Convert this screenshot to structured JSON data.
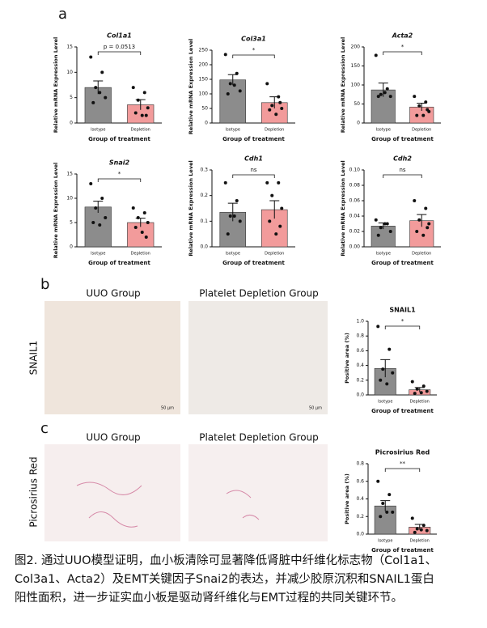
{
  "panels": {
    "a": "a",
    "b": "b",
    "c": "c"
  },
  "images": {
    "b_left": "UUO Group",
    "b_right": "Platelet Depletion Group",
    "b_side": "SNAIL1",
    "c_left": "UUO Group",
    "c_right": "Platelet Depletion Group",
    "c_side": "Picrosirius Red",
    "scale_left": "50 μm",
    "scale_right": "50 μm"
  },
  "caption": [
    "图2. 通过UUO模型证明，血小板清除可显著降低肾脏中纤维化标志物（Col1a1、",
    "Col3a1、Acta2）及EMT关键因子Snai2的表达，并减少胶原沉积和SNAIL1蛋白",
    "阳性面积，进一步证实血小板是驱动肾纤维化与EMT过程的共同关键环节。"
  ],
  "chart_data": [
    {
      "type": "bar",
      "title": "Col1a1",
      "ylabel": "Relative mRNA Expression Level",
      "xlabel": "Group of treatment",
      "categories": [
        "Isotype",
        "Depletion"
      ],
      "colors": [
        "#8c8c8c",
        "#f29b9b"
      ],
      "values": [
        7,
        3.6
      ],
      "errors": [
        1.3,
        1.0
      ],
      "points": [
        [
          13,
          10,
          7,
          5,
          4,
          6
        ],
        [
          7,
          6,
          4.5,
          3,
          2,
          1.5,
          1.5
        ]
      ],
      "annotation": "p = 0.0513",
      "ylim": [
        0,
        15
      ],
      "yticks": [
        0,
        5,
        10,
        15
      ]
    },
    {
      "type": "bar",
      "title": "Col3a1",
      "ylabel": "Relative mRNA Expression Level",
      "xlabel": "Group of treatment",
      "categories": [
        "Isotype",
        "Depletion"
      ],
      "colors": [
        "#8c8c8c",
        "#f29b9b"
      ],
      "values": [
        148,
        70
      ],
      "errors": [
        18,
        20
      ],
      "points": [
        [
          235,
          170,
          135,
          110,
          100,
          130
        ],
        [
          135,
          90,
          60,
          50,
          45,
          30,
          70
        ]
      ],
      "annotation": "*",
      "ylim": [
        0,
        250
      ],
      "yticks": [
        0,
        50,
        100,
        150,
        200,
        250
      ]
    },
    {
      "type": "bar",
      "title": "Acta2",
      "ylabel": "Relative mRNA Expression Level",
      "xlabel": "Group of treatment",
      "categories": [
        "Isotype",
        "Depletion"
      ],
      "colors": [
        "#8c8c8c",
        "#f29b9b"
      ],
      "values": [
        87,
        42
      ],
      "errors": [
        18,
        10
      ],
      "points": [
        [
          178,
          90,
          75,
          70,
          70,
          80
        ],
        [
          70,
          55,
          45,
          30,
          20,
          20,
          35
        ]
      ],
      "annotation": "*",
      "ylim": [
        0,
        200
      ],
      "yticks": [
        0,
        50,
        100,
        150,
        200
      ]
    },
    {
      "type": "bar",
      "title": "Snai2",
      "ylabel": "Relative mRNA Expression Level",
      "xlabel": "Group of treatment",
      "categories": [
        "Isotype",
        "Depletion"
      ],
      "colors": [
        "#8c8c8c",
        "#f29b9b"
      ],
      "values": [
        8.2,
        5.0
      ],
      "errors": [
        1.2,
        0.9
      ],
      "points": [
        [
          13,
          10,
          8,
          6,
          5,
          4.5
        ],
        [
          8,
          7,
          6,
          5,
          4,
          3,
          2
        ]
      ],
      "annotation": "*",
      "ylim": [
        0,
        15
      ],
      "yticks": [
        0,
        5,
        10,
        15
      ]
    },
    {
      "type": "bar",
      "title": "Cdh1",
      "ylabel": "Relative mRNA Expression Level",
      "xlabel": "Group of treatment",
      "categories": [
        "Isotype",
        "Depletion"
      ],
      "colors": [
        "#8c8c8c",
        "#f29b9b"
      ],
      "values": [
        0.135,
        0.145
      ],
      "errors": [
        0.035,
        0.035
      ],
      "points": [
        [
          0.25,
          0.18,
          0.12,
          0.1,
          0.05,
          0.12
        ],
        [
          0.25,
          0.25,
          0.2,
          0.15,
          0.1,
          0.05,
          0.08
        ]
      ],
      "annotation": "ns",
      "ylim": [
        0,
        0.3
      ],
      "yticks": [
        {
          "value": 0,
          "label": "0.0"
        },
        0.1,
        0.2,
        0.3
      ]
    },
    {
      "type": "bar",
      "title": "Cdh2",
      "ylabel": "Relative mRNA Expression Level",
      "xlabel": "Group of treatment",
      "categories": [
        "Isotype",
        "Depletion"
      ],
      "colors": [
        "#8c8c8c",
        "#f29b9b"
      ],
      "values": [
        0.027,
        0.034
      ],
      "errors": [
        0.004,
        0.008
      ],
      "points": [
        [
          0.035,
          0.03,
          0.025,
          0.02,
          0.015,
          0.03
        ],
        [
          0.06,
          0.05,
          0.035,
          0.03,
          0.02,
          0.015,
          0.025
        ]
      ],
      "annotation": "ns",
      "ylim": [
        0,
        0.1
      ],
      "yticks": [
        {
          "value": 0,
          "label": "0.00"
        },
        {
          "value": 0.02,
          "label": "0.02"
        },
        {
          "value": 0.04,
          "label": "0.04"
        },
        {
          "value": 0.06,
          "label": "0.06"
        },
        {
          "value": 0.08,
          "label": "0.08"
        },
        {
          "value": 0.1,
          "label": "0.10"
        }
      ]
    },
    {
      "type": "bar",
      "title": "SNAIL1",
      "ylabel": "Positive area (%)",
      "xlabel": "Group of treatment",
      "categories": [
        "Isotype",
        "Depletion"
      ],
      "colors": [
        "#8c8c8c",
        "#f29b9b"
      ],
      "values": [
        0.36,
        0.07
      ],
      "errors": [
        0.12,
        0.03
      ],
      "points": [
        [
          0.93,
          0.62,
          0.35,
          0.3,
          0.2,
          0.15
        ],
        [
          0.18,
          0.12,
          0.08,
          0.05,
          0.02,
          0.03
        ]
      ],
      "annotation": "*",
      "ylim": [
        0,
        1
      ],
      "yticks": [
        {
          "value": 0,
          "label": "0.0"
        },
        0.2,
        0.4,
        0.6,
        0.8,
        {
          "value": 1,
          "label": "1.0"
        }
      ]
    },
    {
      "type": "bar",
      "title": "Picrosirius Red",
      "ylabel": "Positive area (%)",
      "xlabel": "Group of treatment",
      "categories": [
        "Isotype",
        "Depletion"
      ],
      "colors": [
        "#8c8c8c",
        "#f29b9b"
      ],
      "values": [
        0.32,
        0.08
      ],
      "errors": [
        0.06,
        0.03
      ],
      "points": [
        [
          0.6,
          0.45,
          0.35,
          0.25,
          0.2,
          0.25
        ],
        [
          0.18,
          0.1,
          0.06,
          0.04,
          0.02,
          0.05
        ]
      ],
      "annotation": "**",
      "ylim": [
        0,
        0.8
      ],
      "yticks": [
        {
          "value": 0,
          "label": "0.0"
        },
        0.2,
        0.4,
        0.6,
        0.8
      ]
    }
  ]
}
